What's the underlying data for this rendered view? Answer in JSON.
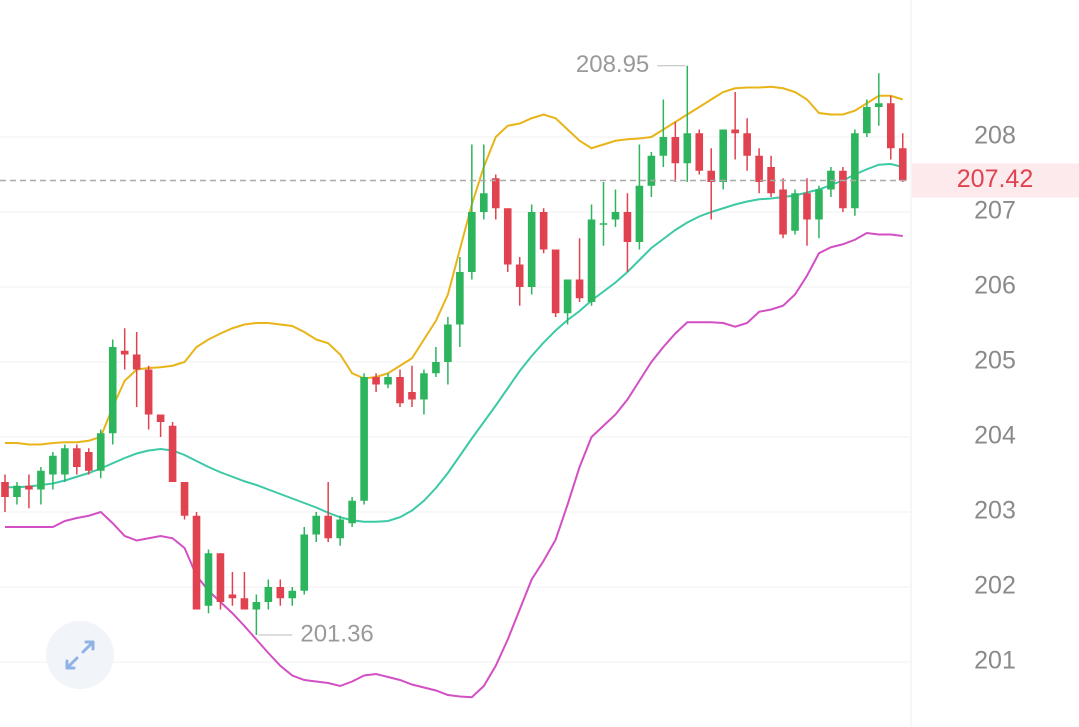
{
  "chart_data": {
    "type": "candlestick",
    "open": [
      203.4,
      203.2,
      203.35,
      203.3,
      203.5,
      203.5,
      203.85,
      203.8,
      203.55,
      204.05,
      205.15,
      205.1,
      204.9,
      204.3,
      204.15,
      203.4,
      202.95,
      201.75,
      202.45,
      201.9,
      201.85,
      201.7,
      201.8,
      202.0,
      201.85,
      201.95,
      202.7,
      202.95,
      202.65,
      202.85,
      203.15,
      204.8,
      204.7,
      204.8,
      204.6,
      204.5,
      204.85,
      205.0,
      205.5,
      206.2,
      207.0,
      207.45,
      207.05,
      206.3,
      206.0,
      207.0,
      206.5,
      205.65,
      206.1,
      205.8,
      206.85,
      206.9,
      207.0,
      206.6,
      207.35,
      207.75,
      208.0,
      207.65,
      208.05,
      207.55,
      207.4,
      208.1,
      208.05,
      207.75,
      207.6,
      207.3,
      206.75,
      207.25,
      206.9,
      207.3,
      207.55,
      207.05,
      208.05,
      208.4,
      208.45,
      207.85
    ],
    "high": [
      203.5,
      203.4,
      203.5,
      203.6,
      203.8,
      203.9,
      203.9,
      203.85,
      204.1,
      205.3,
      205.45,
      205.4,
      204.95,
      204.3,
      204.2,
      203.4,
      203.0,
      202.5,
      202.45,
      202.2,
      202.2,
      201.9,
      202.1,
      202.1,
      202.0,
      202.8,
      203.0,
      203.4,
      202.95,
      203.2,
      204.85,
      204.85,
      204.85,
      204.9,
      204.95,
      204.9,
      205.2,
      205.6,
      206.4,
      207.9,
      207.9,
      207.5,
      207.05,
      206.4,
      207.1,
      207.05,
      206.5,
      206.1,
      206.65,
      207.1,
      207.4,
      207.3,
      207.25,
      207.9,
      207.8,
      208.5,
      208.2,
      208.95,
      208.1,
      207.85,
      208.1,
      208.6,
      208.25,
      207.85,
      207.75,
      207.45,
      207.3,
      207.45,
      207.35,
      207.6,
      207.6,
      208.1,
      208.5,
      208.85,
      208.55,
      208.05
    ],
    "low": [
      203.0,
      203.1,
      203.05,
      203.1,
      203.3,
      203.4,
      203.5,
      203.5,
      203.45,
      203.9,
      204.9,
      204.4,
      204.1,
      204.0,
      203.4,
      202.9,
      201.7,
      201.65,
      201.7,
      201.75,
      201.7,
      201.36,
      201.7,
      201.75,
      201.75,
      201.9,
      202.6,
      202.6,
      202.55,
      202.8,
      203.1,
      204.6,
      204.65,
      204.4,
      204.4,
      204.3,
      204.8,
      204.7,
      205.2,
      206.1,
      206.9,
      206.9,
      206.2,
      205.75,
      205.9,
      206.45,
      205.6,
      205.5,
      205.8,
      205.75,
      206.55,
      206.8,
      206.2,
      206.5,
      207.2,
      207.6,
      207.4,
      207.4,
      207.5,
      206.9,
      207.3,
      207.7,
      207.55,
      207.25,
      207.2,
      206.65,
      206.7,
      206.55,
      206.65,
      207.2,
      207.0,
      206.95,
      208.0,
      208.15,
      207.7,
      207.4
    ],
    "close": [
      203.2,
      203.35,
      203.3,
      203.55,
      203.75,
      203.85,
      203.6,
      203.55,
      204.05,
      205.2,
      205.1,
      204.9,
      204.3,
      204.2,
      203.4,
      202.95,
      201.7,
      202.45,
      201.8,
      201.85,
      201.7,
      201.8,
      202.0,
      201.85,
      201.95,
      202.7,
      202.95,
      202.65,
      202.9,
      203.15,
      204.8,
      204.7,
      204.8,
      204.45,
      204.5,
      204.85,
      205.0,
      205.5,
      206.2,
      207.0,
      207.25,
      207.05,
      206.3,
      206.0,
      207.0,
      206.5,
      205.65,
      206.1,
      205.85,
      206.9,
      206.85,
      207.0,
      206.6,
      207.35,
      207.75,
      208.0,
      207.65,
      208.05,
      207.55,
      207.4,
      208.1,
      208.05,
      207.75,
      207.4,
      207.25,
      206.7,
      207.25,
      206.9,
      207.3,
      207.55,
      207.05,
      208.05,
      208.4,
      208.45,
      207.85,
      207.42
    ],
    "up_color": "#2db55d",
    "down_color": "#e0424f",
    "bands": [
      {
        "color": "#e8b418",
        "values": [
          203.92,
          203.92,
          203.9,
          203.9,
          203.92,
          203.93,
          203.93,
          203.95,
          204.0,
          204.4,
          204.75,
          204.9,
          204.92,
          204.93,
          204.95,
          205.0,
          205.2,
          205.3,
          205.38,
          205.45,
          205.5,
          205.52,
          205.52,
          205.5,
          205.48,
          205.4,
          205.3,
          205.25,
          205.1,
          204.85,
          204.78,
          204.8,
          204.85,
          204.95,
          205.05,
          205.3,
          205.55,
          205.9,
          206.5,
          207.1,
          207.6,
          208.0,
          208.15,
          208.18,
          208.25,
          208.3,
          208.25,
          208.1,
          207.95,
          207.85,
          207.9,
          207.95,
          207.97,
          207.98,
          208.0,
          208.1,
          208.2,
          208.3,
          208.4,
          208.5,
          208.6,
          208.65,
          208.66,
          208.66,
          208.67,
          208.65,
          208.6,
          208.5,
          208.32,
          208.3,
          208.3,
          208.35,
          208.45,
          208.55,
          208.55,
          208.5
        ]
      },
      {
        "color": "#3cc9a6",
        "values": [
          203.33,
          203.33,
          203.34,
          203.36,
          203.38,
          203.42,
          203.47,
          203.52,
          203.58,
          203.65,
          203.72,
          203.78,
          203.82,
          203.84,
          203.82,
          203.76,
          203.68,
          203.6,
          203.53,
          203.47,
          203.41,
          203.36,
          203.3,
          203.24,
          203.18,
          203.12,
          203.06,
          202.99,
          202.93,
          202.89,
          202.87,
          202.87,
          202.88,
          202.93,
          203.02,
          203.15,
          203.32,
          203.52,
          203.75,
          203.98,
          204.2,
          204.42,
          204.65,
          204.88,
          205.08,
          205.26,
          205.42,
          205.56,
          205.68,
          205.82,
          205.94,
          206.06,
          206.2,
          206.36,
          206.52,
          206.64,
          206.76,
          206.86,
          206.94,
          207.0,
          207.05,
          207.1,
          207.14,
          207.17,
          207.18,
          207.2,
          207.22,
          207.26,
          207.3,
          207.36,
          207.42,
          207.5,
          207.57,
          207.63,
          207.64,
          207.6
        ]
      },
      {
        "color": "#d24fc4",
        "values": [
          202.8,
          202.8,
          202.8,
          202.8,
          202.8,
          202.88,
          202.92,
          202.95,
          203.0,
          202.85,
          202.68,
          202.62,
          202.65,
          202.68,
          202.65,
          202.52,
          202.15,
          201.95,
          201.8,
          201.65,
          201.48,
          201.3,
          201.12,
          200.95,
          200.82,
          200.76,
          200.74,
          200.72,
          200.68,
          200.74,
          200.82,
          200.84,
          200.8,
          200.76,
          200.7,
          200.66,
          200.62,
          200.56,
          200.54,
          200.53,
          200.68,
          200.95,
          201.3,
          201.7,
          202.1,
          202.35,
          202.63,
          203.1,
          203.6,
          204.0,
          204.15,
          204.3,
          204.5,
          204.75,
          205.0,
          205.2,
          205.38,
          205.53,
          205.53,
          205.53,
          205.52,
          205.47,
          205.52,
          205.67,
          205.7,
          205.75,
          205.9,
          206.15,
          206.45,
          206.53,
          206.57,
          206.63,
          206.72,
          206.7,
          206.7,
          206.68
        ]
      }
    ],
    "max_label": 208.95,
    "min_label": 201.36,
    "last_price": 207.42,
    "ylim": [
      200.2,
      209.8
    ],
    "yticks": [
      201,
      202,
      203,
      204,
      205,
      206,
      207,
      208
    ],
    "grid": true
  }
}
